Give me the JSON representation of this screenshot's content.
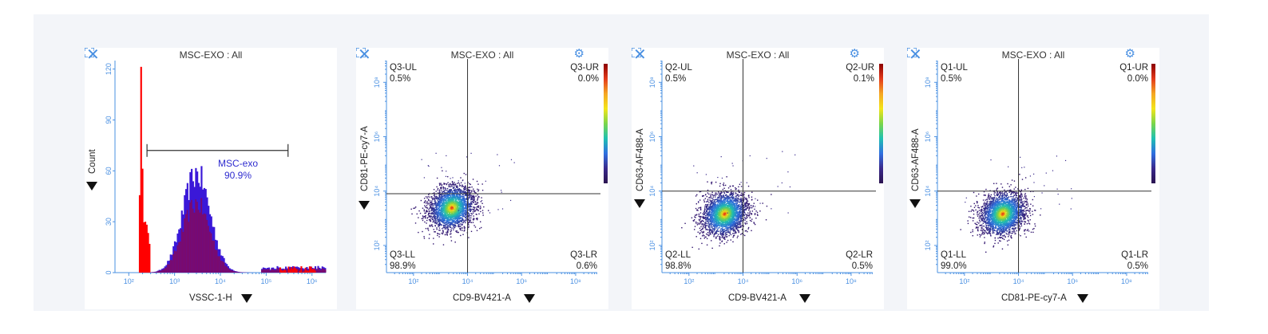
{
  "panels": [
    {
      "title": "MSC-EXO : All",
      "xlabel": "VSSC-1-H",
      "ylabel": "Count",
      "xticks": [
        "10²",
        "10³",
        "10⁴",
        "10⁵",
        "10⁶"
      ],
      "yticks": [
        "0",
        "30",
        "60",
        "90",
        "120"
      ],
      "gate": {
        "name": "MSC-exo",
        "percent": "90.9%"
      }
    },
    {
      "title": "MSC-EXO : All",
      "xlabel": "CD9-BV421-A",
      "ylabel": "CD81-PE-cy7-A",
      "xticks": [
        "10²",
        "10⁴",
        "10⁶",
        "10⁸"
      ],
      "yticks": [
        "10²",
        "10⁴",
        "10⁶",
        "10⁸"
      ],
      "quadrants": {
        "ul": {
          "name": "Q3-UL",
          "pct": "0.5%"
        },
        "ur": {
          "name": "Q3-UR",
          "pct": "0.0%"
        },
        "ll": {
          "name": "Q3-LL",
          "pct": "98.9%"
        },
        "lr": {
          "name": "Q3-LR",
          "pct": "0.6%"
        }
      }
    },
    {
      "title": "MSC-EXO : All",
      "xlabel": "CD9-BV421-A",
      "ylabel": "CD63-AF488-A",
      "xticks": [
        "10²",
        "10⁴",
        "10⁶",
        "10⁸"
      ],
      "yticks": [
        "10²",
        "10⁴",
        "10⁶",
        "10⁸"
      ],
      "quadrants": {
        "ul": {
          "name": "Q2-UL",
          "pct": "0.5%"
        },
        "ur": {
          "name": "Q2-UR",
          "pct": "0.1%"
        },
        "ll": {
          "name": "Q2-LL",
          "pct": "98.8%"
        },
        "lr": {
          "name": "Q2-LR",
          "pct": "0.5%"
        }
      }
    },
    {
      "title": "MSC-EXO : All",
      "xlabel": "CD81-PE-cy7-A",
      "ylabel": "CD63-AF488-A",
      "xticks": [
        "10²",
        "10⁴",
        "10⁶",
        "10⁸"
      ],
      "yticks": [
        "10²",
        "10⁴",
        "10⁶",
        "10⁸"
      ],
      "quadrants": {
        "ul": {
          "name": "Q1-UL",
          "pct": "0.5%"
        },
        "ur": {
          "name": "Q1-UR",
          "pct": "0.0%"
        },
        "ll": {
          "name": "Q1-LL",
          "pct": "99.0%"
        },
        "lr": {
          "name": "Q1-LR",
          "pct": "0.5%"
        }
      }
    }
  ],
  "chart_data": [
    {
      "type": "histogram",
      "title": "MSC-EXO : All",
      "xlabel": "VSSC-1-H",
      "ylabel": "Count",
      "xscale": "log",
      "xlim": [
        50,
        2000000
      ],
      "ylim": [
        0,
        125
      ],
      "gate": {
        "name": "MSC-exo",
        "percent": 90.9,
        "range": [
          250,
          300000
        ]
      },
      "series": [
        {
          "name": "",
          "color": "#ff0000",
          "peak_x": 190,
          "peak_y": 105
        },
        {
          "name": "MSC-exo",
          "color": "#3a18d8",
          "mode_x": 3000,
          "mode_y": 60
        }
      ]
    },
    {
      "type": "scatter",
      "title": "MSC-EXO : All",
      "xlabel": "CD9-BV421-A",
      "ylabel": "CD81-PE-cy7-A",
      "xscale": "log",
      "yscale": "log",
      "quadrant_x": 10000,
      "quadrant_y": 8000,
      "quadrants": {
        "UL": 0.5,
        "UR": 0.0,
        "LL": 98.9,
        "LR": 0.6
      },
      "population_center": [
        2500,
        2500
      ]
    },
    {
      "type": "scatter",
      "title": "MSC-EXO : All",
      "xlabel": "CD9-BV421-A",
      "ylabel": "CD63-AF488-A",
      "xscale": "log",
      "yscale": "log",
      "quadrant_x": 10000,
      "quadrant_y": 10000,
      "quadrants": {
        "UL": 0.5,
        "UR": 0.1,
        "LL": 98.8,
        "LR": 0.5
      },
      "population_center": [
        2000,
        1500
      ]
    },
    {
      "type": "scatter",
      "title": "MSC-EXO : All",
      "xlabel": "CD81-PE-cy7-A",
      "ylabel": "CD63-AF488-A",
      "xscale": "log",
      "yscale": "log",
      "quadrant_x": 10000,
      "quadrant_y": 10000,
      "quadrants": {
        "UL": 0.5,
        "UR": 0.0,
        "LL": 99.0,
        "LR": 0.5
      },
      "population_center": [
        2500,
        1500
      ]
    }
  ]
}
